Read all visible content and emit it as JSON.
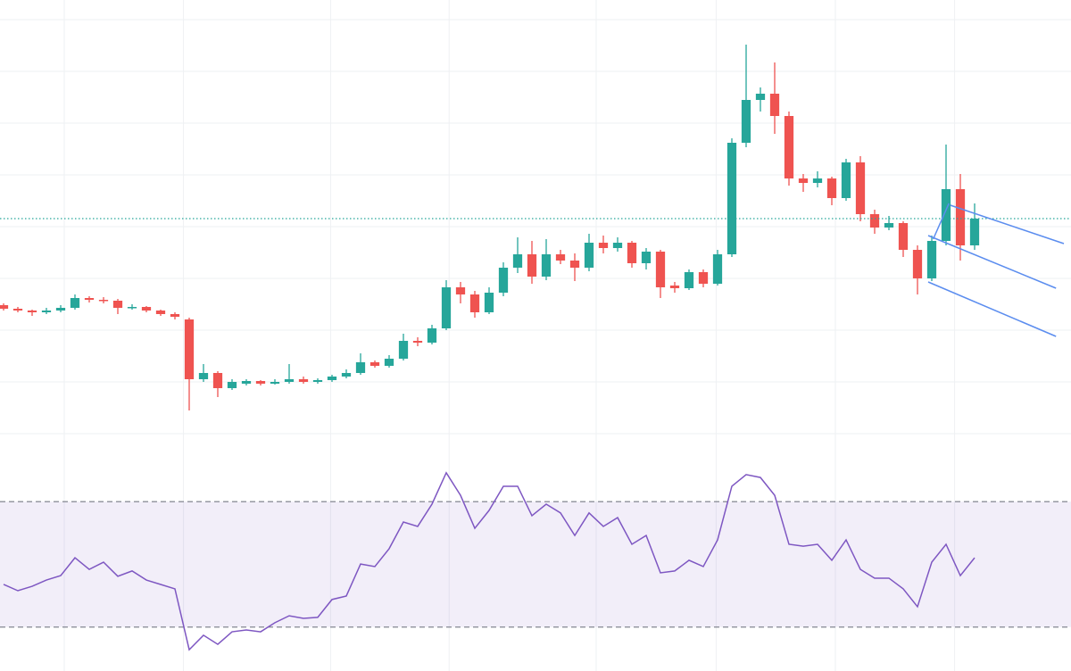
{
  "chart_data": [
    {
      "type": "candlestick",
      "xlim": [
        -0.25,
        74.75
      ],
      "ylim": [
        0,
        520
      ],
      "xticks": [
        4.25,
        12.6,
        22.9,
        31.2,
        41.5,
        49.9,
        58.25,
        66.6
      ],
      "yticks": [
        498,
        440,
        382,
        324,
        266,
        208,
        150,
        92,
        34
      ],
      "grid": true,
      "up_color": "#26a69a",
      "down_color": "#ef5350",
      "last_price_line": true,
      "ohlc": [
        [
          178,
          180,
          172,
          174
        ],
        [
          174,
          176,
          170,
          172
        ],
        [
          172,
          173,
          166,
          170
        ],
        [
          170,
          175,
          168,
          172
        ],
        [
          172,
          178,
          170,
          175
        ],
        [
          175,
          190,
          173,
          186
        ],
        [
          186,
          188,
          181,
          184
        ],
        [
          184,
          187,
          180,
          183
        ],
        [
          183,
          185,
          168,
          175
        ],
        [
          175,
          179,
          173,
          176
        ],
        [
          176,
          177,
          170,
          172
        ],
        [
          172,
          173,
          166,
          168
        ],
        [
          168,
          170,
          162,
          165
        ],
        [
          162,
          164,
          60,
          95
        ],
        [
          95,
          112,
          92,
          102
        ],
        [
          102,
          104,
          75,
          85
        ],
        [
          85,
          95,
          83,
          92
        ],
        [
          90,
          95,
          88,
          93
        ],
        [
          93,
          94,
          88,
          90
        ],
        [
          90,
          95,
          89,
          92
        ],
        [
          92,
          112,
          90,
          95
        ],
        [
          95,
          98,
          90,
          92
        ],
        [
          92,
          96,
          90,
          94
        ],
        [
          94,
          100,
          92,
          98
        ],
        [
          98,
          106,
          96,
          102
        ],
        [
          102,
          124,
          100,
          114
        ],
        [
          114,
          116,
          108,
          110
        ],
        [
          110,
          122,
          108,
          118
        ],
        [
          118,
          146,
          116,
          138
        ],
        [
          138,
          142,
          132,
          136
        ],
        [
          136,
          156,
          134,
          152
        ],
        [
          152,
          206,
          150,
          198
        ],
        [
          198,
          204,
          180,
          190
        ],
        [
          190,
          194,
          164,
          170
        ],
        [
          170,
          198,
          168,
          192
        ],
        [
          192,
          226,
          188,
          220
        ],
        [
          220,
          254,
          214,
          235
        ],
        [
          235,
          250,
          202,
          210
        ],
        [
          210,
          252,
          206,
          235
        ],
        [
          235,
          240,
          224,
          228
        ],
        [
          228,
          236,
          205,
          220
        ],
        [
          220,
          258,
          216,
          248
        ],
        [
          248,
          256,
          236,
          242
        ],
        [
          242,
          254,
          238,
          248
        ],
        [
          248,
          250,
          220,
          225
        ],
        [
          225,
          242,
          218,
          238
        ],
        [
          238,
          240,
          186,
          198
        ],
        [
          200,
          204,
          192,
          197
        ],
        [
          197,
          218,
          195,
          215
        ],
        [
          215,
          218,
          198,
          202
        ],
        [
          202,
          240,
          200,
          235
        ],
        [
          235,
          365,
          232,
          360
        ],
        [
          360,
          470,
          355,
          408
        ],
        [
          408,
          422,
          395,
          415
        ],
        [
          415,
          450,
          370,
          390
        ],
        [
          390,
          395,
          312,
          320
        ],
        [
          320,
          325,
          305,
          315
        ],
        [
          315,
          328,
          310,
          320
        ],
        [
          320,
          322,
          290,
          298
        ],
        [
          298,
          342,
          295,
          338
        ],
        [
          338,
          345,
          272,
          280
        ],
        [
          280,
          285,
          258,
          265
        ],
        [
          265,
          278,
          262,
          270
        ],
        [
          270,
          272,
          232,
          240
        ],
        [
          240,
          245,
          190,
          208
        ],
        [
          208,
          256,
          205,
          250
        ],
        [
          250,
          358,
          245,
          308
        ],
        [
          308,
          325,
          228,
          245
        ],
        [
          245,
          292,
          240,
          275
        ]
      ],
      "trend_lines": [
        {
          "color": "#5b8def",
          "x": [
            65.1,
            66.2
          ],
          "y": [
            252,
            292
          ]
        },
        {
          "color": "#5b8def",
          "x": [
            66.3,
            74.25
          ],
          "y": [
            290,
            247
          ]
        },
        {
          "color": "#5b8def",
          "x": [
            64.75,
            73.7
          ],
          "y": [
            256,
            197
          ]
        },
        {
          "color": "#5b8def",
          "x": [
            64.75,
            73.7
          ],
          "y": [
            204,
            143
          ]
        }
      ]
    },
    {
      "type": "line",
      "ylim": [
        16,
        82
      ],
      "bands": [
        30,
        70
      ],
      "color": "#7e57c2",
      "band_color": "#7e57c2",
      "values": [
        43.6,
        41.6,
        43.0,
        45.0,
        46.4,
        52.1,
        48.4,
        50.7,
        46.2,
        47.9,
        45.0,
        43.6,
        42.2,
        22.8,
        27.4,
        24.5,
        28.5,
        29.1,
        28.5,
        31.4,
        33.6,
        32.8,
        33.1,
        38.8,
        39.9,
        50.1,
        49.3,
        55.0,
        63.5,
        62.1,
        69.2,
        79.2,
        72.0,
        61.5,
        67.2,
        74.9,
        74.9,
        65.5,
        69.2,
        66.4,
        59.2,
        66.4,
        62.1,
        64.9,
        56.4,
        59.2,
        47.3,
        47.9,
        51.3,
        49.3,
        57.8,
        74.9,
        78.6,
        77.7,
        72.0,
        56.4,
        55.8,
        56.4,
        51.3,
        57.8,
        48.4,
        45.6,
        45.6,
        42.2,
        36.5,
        50.7,
        56.4,
        46.4,
        52.1
      ]
    }
  ]
}
